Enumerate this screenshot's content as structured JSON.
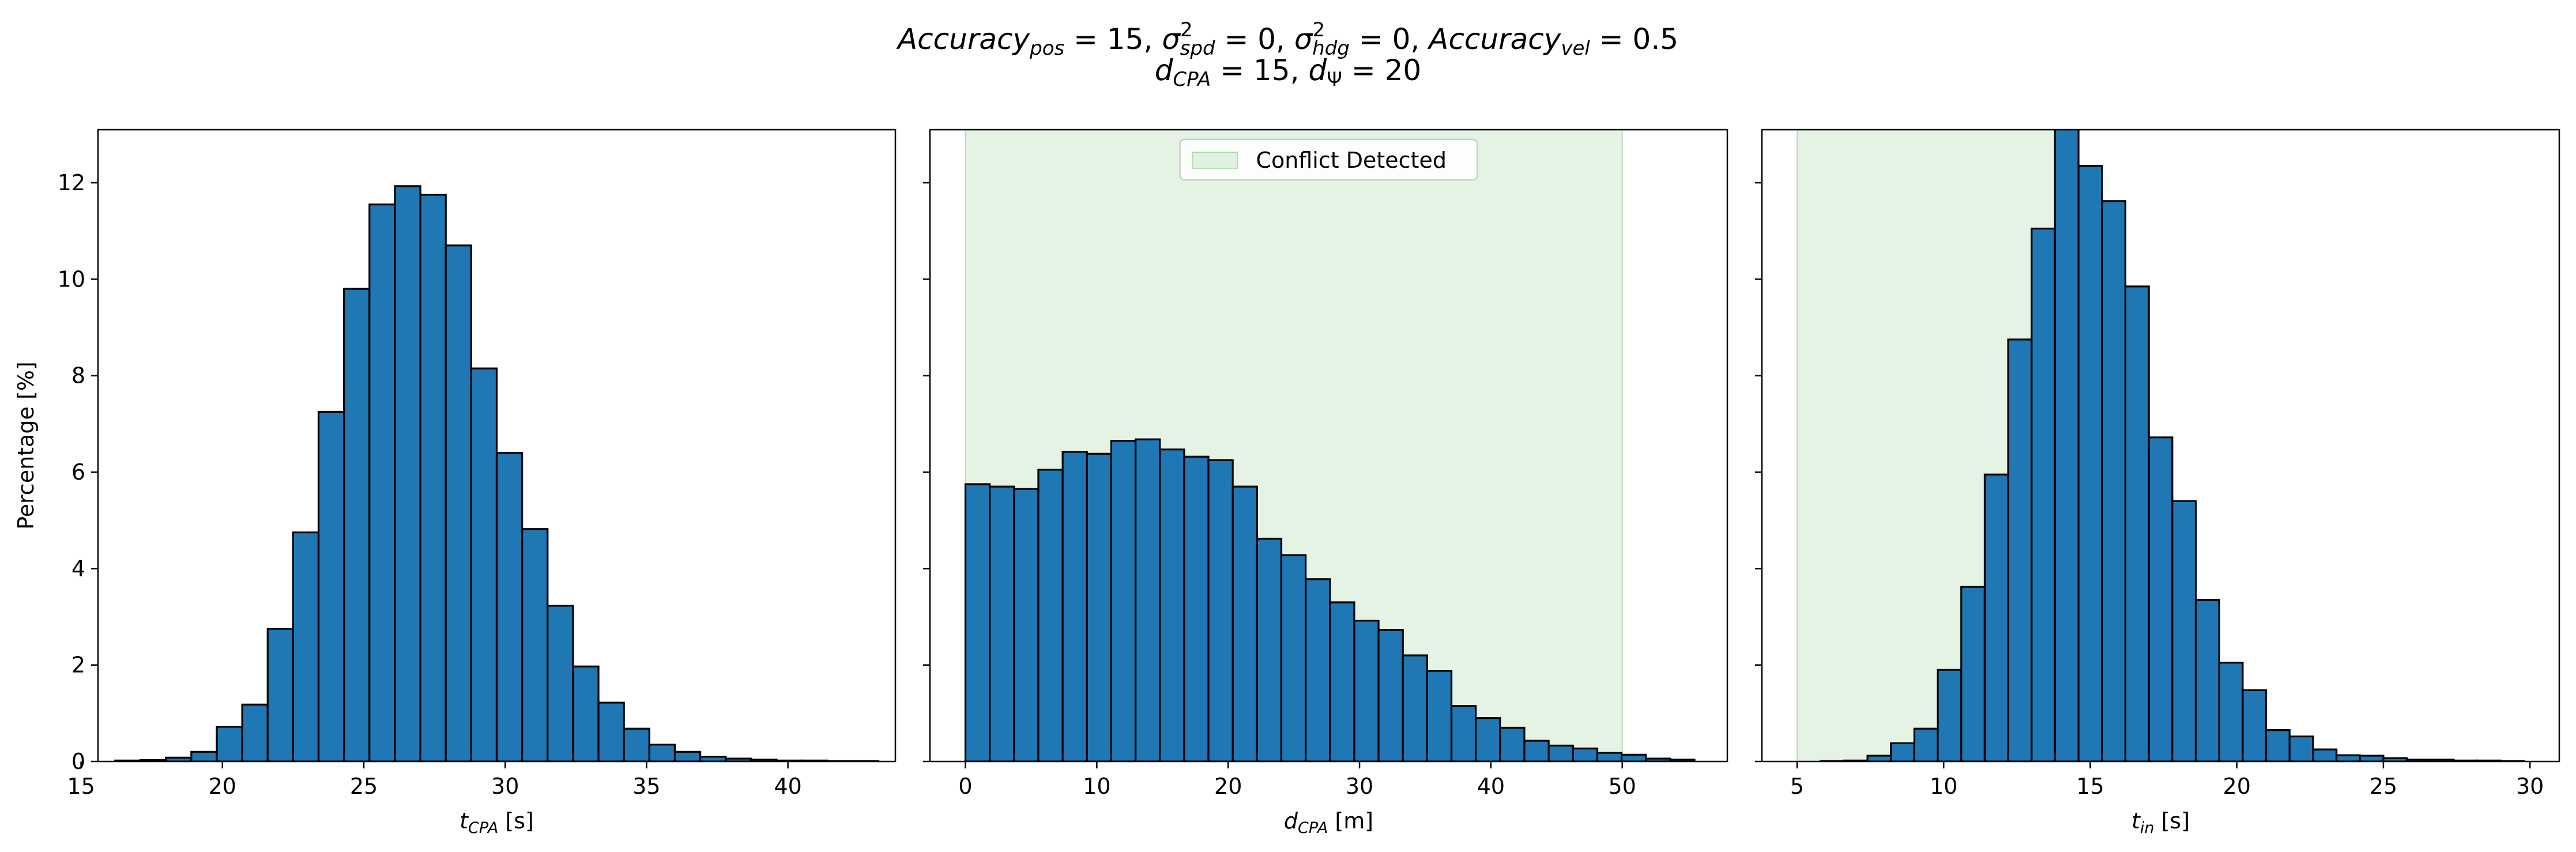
{
  "figure": {
    "title_line1": {
      "parts": [
        {
          "t": "Accuracy",
          "style": "it"
        },
        {
          "t": "pos",
          "style": "sub-it"
        },
        {
          "t": " = 15, ",
          "style": "n"
        },
        {
          "t": "σ",
          "style": "it"
        },
        {
          "t": "2",
          "style": "sup"
        },
        {
          "t": "spd",
          "style": "sub-it"
        },
        {
          "t": " = 0, ",
          "style": "n"
        },
        {
          "t": "σ",
          "style": "it"
        },
        {
          "t": "2",
          "style": "sup"
        },
        {
          "t": "hdg",
          "style": "sub-it"
        },
        {
          "t": " = 0, ",
          "style": "n"
        },
        {
          "t": "Accuracy",
          "style": "it"
        },
        {
          "t": "vel",
          "style": "sub-it"
        },
        {
          "t": " = 0.5",
          "style": "n"
        }
      ]
    },
    "title_line2": {
      "parts": [
        {
          "t": "d",
          "style": "it"
        },
        {
          "t": "CPA",
          "style": "sub-it"
        },
        {
          "t": " = 15, ",
          "style": "n"
        },
        {
          "t": "d",
          "style": "it"
        },
        {
          "t": "Ψ",
          "style": "sub"
        },
        {
          "t": " = 20",
          "style": "n"
        }
      ]
    }
  },
  "chart_data": [
    {
      "type": "bar",
      "name": "tcpa-histogram",
      "xlabel": {
        "main": "t",
        "sub": "CPA",
        "unit": " [s]"
      },
      "ylabel": "Percentage [%]",
      "xlim": [
        15.6,
        43.8
      ],
      "ylim": [
        0,
        13.1
      ],
      "xticks": [
        15,
        20,
        25,
        30,
        35,
        40
      ],
      "yticks": [
        0,
        2,
        4,
        6,
        8,
        10,
        12
      ],
      "bar_color": "#1f77b4",
      "edge_color": "#000000",
      "bins": {
        "edges": [
          16.2,
          17.1,
          18.0,
          18.9,
          19.8,
          20.7,
          21.6,
          22.5,
          23.4,
          24.3,
          25.2,
          26.1,
          27.0,
          27.9,
          28.8,
          29.7,
          30.6,
          31.5,
          32.4,
          33.3,
          34.2,
          35.1,
          36.0,
          36.9,
          37.8,
          38.7,
          39.6,
          40.5,
          41.4,
          42.3,
          43.2
        ],
        "values": [
          0.02,
          0.03,
          0.08,
          0.2,
          0.72,
          1.18,
          2.75,
          4.75,
          7.25,
          9.8,
          11.55,
          11.93,
          11.75,
          10.7,
          8.15,
          6.4,
          4.82,
          3.23,
          1.97,
          1.22,
          0.68,
          0.35,
          0.2,
          0.1,
          0.06,
          0.04,
          0.02,
          0.02,
          0.01,
          0.01
        ]
      }
    },
    {
      "type": "bar",
      "name": "dcpa-histogram",
      "xlabel": {
        "main": "d",
        "sub": "CPA",
        "unit": " [m]"
      },
      "xlim": [
        -2.7,
        58.0
      ],
      "ylim": [
        0,
        13.1
      ],
      "xticks": [
        0,
        10,
        20,
        30,
        40,
        50
      ],
      "yticks": [
        0,
        2,
        4,
        6,
        8,
        10,
        12
      ],
      "bar_color": "#1f77b4",
      "edge_color": "#000000",
      "shaded_region": {
        "from": 0,
        "to": 50,
        "color": "#2ca02c",
        "opacity": 0.12,
        "label": "Conflict Detected"
      },
      "legend": {
        "label": "Conflict Detected",
        "placement": "upper center"
      },
      "bins": {
        "edges": [
          0.0,
          1.85,
          3.7,
          5.55,
          7.4,
          9.25,
          11.1,
          12.95,
          14.8,
          16.65,
          18.5,
          20.35,
          22.2,
          24.05,
          25.9,
          27.75,
          29.6,
          31.45,
          33.3,
          35.15,
          37.0,
          38.85,
          40.7,
          42.55,
          44.4,
          46.25,
          48.1,
          49.95,
          51.8,
          53.65,
          55.5
        ],
        "values": [
          5.75,
          5.7,
          5.65,
          6.05,
          6.42,
          6.38,
          6.65,
          6.68,
          6.47,
          6.32,
          6.25,
          5.7,
          4.62,
          4.28,
          3.78,
          3.3,
          2.92,
          2.73,
          2.2,
          1.88,
          1.15,
          0.9,
          0.7,
          0.43,
          0.33,
          0.27,
          0.18,
          0.14,
          0.06,
          0.04
        ]
      }
    },
    {
      "type": "bar",
      "name": "tin-histogram",
      "xlabel": {
        "main": "t",
        "sub": "in",
        "unit": " [s]"
      },
      "xlim": [
        3.8,
        31.0
      ],
      "ylim": [
        0,
        13.1
      ],
      "xticks": [
        5,
        10,
        15,
        20,
        25,
        30
      ],
      "yticks": [
        0,
        2,
        4,
        6,
        8,
        10,
        12
      ],
      "bar_color": "#1f77b4",
      "edge_color": "#000000",
      "shaded_region": {
        "from": 5,
        "to": 14.4,
        "color": "#2ca02c",
        "opacity": 0.12
      },
      "bins": {
        "edges": [
          5.8,
          6.6,
          7.4,
          8.2,
          9.0,
          9.8,
          10.6,
          11.4,
          12.2,
          13.0,
          13.8,
          14.6,
          15.4,
          16.2,
          17.0,
          17.8,
          18.6,
          19.4,
          20.2,
          21.0,
          21.8,
          22.6,
          23.4,
          24.2,
          25.0,
          25.8,
          26.6,
          27.4,
          28.2,
          29.0,
          29.8
        ],
        "values": [
          0.01,
          0.02,
          0.12,
          0.38,
          0.68,
          1.9,
          3.62,
          5.95,
          8.75,
          11.05,
          13.3,
          12.35,
          11.62,
          9.85,
          6.72,
          5.4,
          3.35,
          2.05,
          1.48,
          0.65,
          0.52,
          0.25,
          0.13,
          0.12,
          0.07,
          0.04,
          0.04,
          0.02,
          0.02,
          0.01
        ]
      }
    }
  ]
}
